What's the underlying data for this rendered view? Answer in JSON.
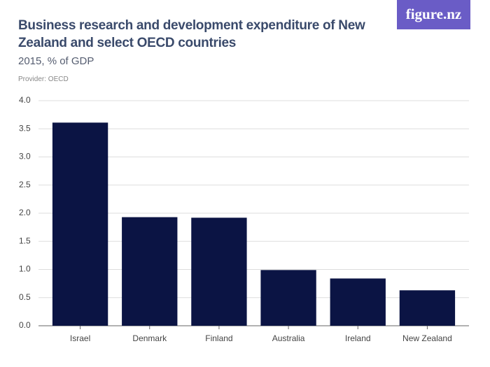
{
  "logo": "figure.nz",
  "chart_data": {
    "type": "bar",
    "title": "Business research and development expenditure of New Zealand and select OECD countries",
    "subtitle": "2015, % of GDP",
    "provider": "Provider: OECD",
    "categories": [
      "Israel",
      "Denmark",
      "Finland",
      "Australia",
      "Ireland",
      "New Zealand"
    ],
    "values": [
      3.61,
      1.93,
      1.92,
      0.99,
      0.84,
      0.63
    ],
    "color": "#0b1444",
    "ylim": [
      0,
      4
    ],
    "yticks": [
      {
        "value": 0,
        "label": "0.0"
      },
      0.5,
      {
        "value": 1,
        "label": "1.0"
      },
      1.5,
      {
        "value": 2,
        "label": "2.0"
      },
      2.5,
      {
        "value": 3,
        "label": "3.0"
      },
      3.5,
      {
        "value": 4,
        "label": "4.0"
      }
    ],
    "grid": true
  }
}
